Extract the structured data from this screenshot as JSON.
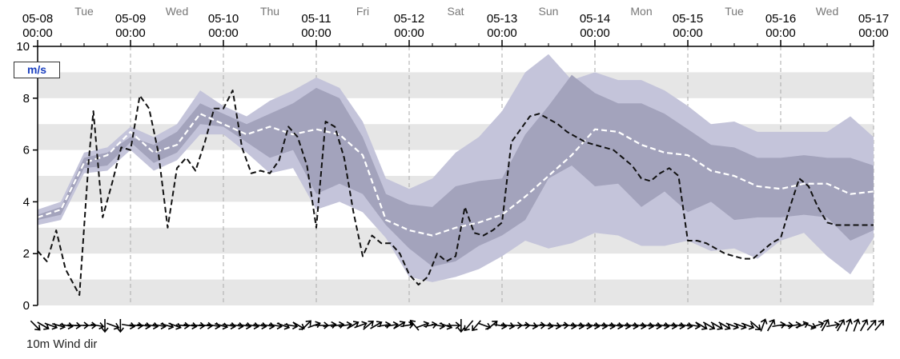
{
  "chart_data": {
    "type": "line",
    "unit": "m/s",
    "ylim": [
      0,
      10
    ],
    "yticks": [
      0,
      2,
      4,
      6,
      8,
      10
    ],
    "xlim": [
      0,
      9
    ],
    "xticks": [
      {
        "x": 0,
        "date": "05-08",
        "time": "00:00"
      },
      {
        "x": 1,
        "date": "05-09",
        "time": "00:00"
      },
      {
        "x": 2,
        "date": "05-10",
        "time": "00:00"
      },
      {
        "x": 3,
        "date": "05-11",
        "time": "00:00"
      },
      {
        "x": 4,
        "date": "05-12",
        "time": "00:00"
      },
      {
        "x": 5,
        "date": "05-13",
        "time": "00:00"
      },
      {
        "x": 6,
        "date": "05-14",
        "time": "00:00"
      },
      {
        "x": 7,
        "date": "05-15",
        "time": "00:00"
      },
      {
        "x": 8,
        "date": "05-16",
        "time": "00:00"
      },
      {
        "x": 9,
        "date": "05-17",
        "time": "00:00"
      }
    ],
    "day_labels": [
      {
        "x": 0.5,
        "label": "Tue"
      },
      {
        "x": 1.5,
        "label": "Wed"
      },
      {
        "x": 2.5,
        "label": "Thu"
      },
      {
        "x": 3.5,
        "label": "Fri"
      },
      {
        "x": 4.5,
        "label": "Sat"
      },
      {
        "x": 5.5,
        "label": "Sun"
      },
      {
        "x": 6.5,
        "label": "Mon"
      },
      {
        "x": 7.5,
        "label": "Tue"
      },
      {
        "x": 8.5,
        "label": "Wed"
      }
    ],
    "band_x": [
      0,
      0.25,
      0.5,
      0.75,
      1,
      1.25,
      1.5,
      1.75,
      2,
      2.25,
      2.5,
      2.75,
      3,
      3.25,
      3.5,
      3.75,
      4,
      4.25,
      4.5,
      4.75,
      5,
      5.25,
      5.5,
      5.75,
      6,
      6.25,
      6.5,
      6.75,
      7,
      7.25,
      7.5,
      7.75,
      8,
      8.25,
      8.5,
      8.75,
      9
    ],
    "outer_band_upper": [
      3.7,
      4.0,
      5.9,
      6.1,
      6.9,
      6.5,
      7.0,
      8.3,
      7.7,
      7.3,
      7.9,
      8.3,
      8.8,
      8.4,
      7.1,
      4.9,
      4.5,
      4.9,
      5.9,
      6.5,
      7.5,
      9.0,
      9.7,
      8.7,
      9.0,
      8.7,
      8.7,
      8.3,
      7.7,
      7.0,
      7.1,
      6.7,
      6.7,
      6.7,
      6.7,
      7.3,
      6.5
    ],
    "outer_band_lower": [
      3.1,
      3.3,
      5.1,
      5.2,
      6.0,
      5.2,
      5.6,
      6.6,
      6.6,
      5.9,
      5.1,
      5.3,
      3.7,
      4.0,
      3.6,
      2.6,
      1.1,
      0.9,
      1.1,
      1.4,
      1.9,
      2.5,
      2.2,
      2.4,
      2.8,
      2.7,
      2.3,
      2.3,
      2.5,
      2.1,
      2.2,
      1.8,
      2.5,
      2.8,
      1.9,
      1.2,
      2.6
    ],
    "inner_band_upper": [
      3.5,
      3.8,
      5.7,
      5.9,
      6.5,
      6.2,
      6.7,
      7.8,
      7.4,
      7.0,
      7.4,
      7.8,
      8.4,
      8.0,
      6.5,
      4.3,
      3.9,
      3.8,
      4.6,
      4.8,
      4.9,
      6.6,
      7.7,
      8.9,
      8.2,
      7.8,
      7.8,
      7.4,
      6.8,
      6.2,
      6.1,
      5.7,
      5.7,
      5.8,
      5.7,
      5.7,
      5.4
    ],
    "inner_band_lower": [
      3.3,
      3.5,
      5.3,
      5.4,
      6.3,
      5.5,
      5.9,
      7.0,
      6.9,
      6.3,
      5.7,
      6.0,
      4.3,
      4.7,
      4.3,
      3.1,
      2.2,
      1.5,
      1.7,
      2.3,
      2.7,
      3.3,
      4.9,
      5.4,
      4.6,
      4.7,
      3.8,
      4.4,
      3.6,
      4.0,
      3.3,
      3.4,
      3.4,
      3.5,
      3.4,
      2.5,
      2.9
    ],
    "series": [
      {
        "values_x": [
          0,
          0.25,
          0.5,
          0.75,
          1,
          1.25,
          1.5,
          1.75,
          2,
          2.25,
          2.5,
          2.75,
          3,
          3.25,
          3.5,
          3.75,
          4,
          4.25,
          4.5,
          4.75,
          5,
          5.25,
          5.5,
          5.75,
          6,
          6.25,
          6.5,
          6.75,
          7,
          7.25,
          7.5,
          7.75,
          8,
          8.25,
          8.5,
          8.75,
          9
        ],
        "values": [
          3.4,
          3.7,
          5.5,
          5.8,
          6.7,
          5.9,
          6.2,
          7.4,
          7.0,
          6.6,
          6.9,
          6.6,
          6.8,
          6.6,
          5.8,
          3.3,
          2.9,
          2.7,
          3.0,
          3.2,
          3.5,
          4.2,
          5.0,
          5.8,
          6.8,
          6.7,
          6.2,
          5.9,
          5.8,
          5.2,
          5.0,
          4.6,
          4.5,
          4.7,
          4.7,
          4.3,
          4.4
        ],
        "style": "white-dashed"
      },
      {
        "values_x": [
          0,
          0.1,
          0.2,
          0.3,
          0.45,
          0.55,
          0.6,
          0.7,
          0.8,
          0.9,
          1.0,
          1.1,
          1.2,
          1.3,
          1.4,
          1.5,
          1.6,
          1.7,
          1.8,
          1.9,
          2.0,
          2.1,
          2.2,
          2.3,
          2.4,
          2.5,
          2.6,
          2.7,
          2.8,
          2.9,
          3.0,
          3.1,
          3.2,
          3.3,
          3.4,
          3.5,
          3.6,
          3.7,
          3.8,
          3.9,
          4.0,
          4.1,
          4.2,
          4.3,
          4.4,
          4.5,
          4.6,
          4.7,
          4.8,
          4.9,
          5.0,
          5.1,
          5.2,
          5.3,
          5.4,
          5.5,
          5.6,
          5.7,
          5.8,
          5.9,
          6.0,
          6.1,
          6.2,
          6.3,
          6.4,
          6.5,
          6.6,
          6.7,
          6.8,
          6.9,
          7.0,
          7.1,
          7.2,
          7.3,
          7.4,
          7.5,
          7.6,
          7.7,
          7.8,
          7.9,
          8.0,
          8.1,
          8.2,
          8.3,
          8.4,
          8.5,
          8.6,
          8.7,
          8.8,
          8.9,
          9.0
        ],
        "values": [
          2.1,
          1.7,
          2.9,
          1.4,
          0.4,
          5.6,
          7.5,
          3.4,
          4.7,
          6.1,
          6.0,
          8.1,
          7.6,
          5.9,
          3.0,
          5.3,
          5.7,
          5.2,
          6.3,
          7.6,
          7.6,
          8.3,
          6.1,
          5.1,
          5.2,
          5.1,
          5.6,
          6.9,
          6.5,
          5.4,
          3.0,
          7.1,
          6.9,
          5.7,
          3.6,
          1.9,
          2.7,
          2.4,
          2.4,
          2.0,
          1.2,
          0.8,
          1.1,
          2.0,
          1.7,
          1.9,
          3.8,
          2.8,
          2.7,
          2.9,
          3.2,
          6.3,
          6.8,
          7.3,
          7.4,
          7.2,
          7.0,
          6.7,
          6.5,
          6.3,
          6.2,
          6.1,
          6.0,
          5.7,
          5.4,
          4.9,
          4.8,
          5.1,
          5.3,
          5.0,
          2.5,
          2.5,
          2.4,
          2.2,
          2.0,
          1.9,
          1.8,
          1.8,
          2.1,
          2.4,
          2.6,
          3.8,
          4.9,
          4.6,
          3.8,
          3.2,
          3.1,
          3.1,
          3.1,
          3.1,
          3.1
        ],
        "style": "black-dashed"
      }
    ],
    "wind_dir_label": "10m Wind dir",
    "wind_dir_degrees": [
      135,
      120,
      110,
      105,
      100,
      95,
      90,
      90,
      100,
      180,
      110,
      180,
      100,
      95,
      100,
      100,
      100,
      105,
      110,
      95,
      100,
      95,
      95,
      100,
      105,
      100,
      100,
      100,
      100,
      100,
      100,
      100,
      110,
      100,
      120,
      45,
      70,
      90,
      80,
      80,
      80,
      60,
      70,
      50,
      60,
      80,
      80,
      60,
      80,
      320,
      70,
      80,
      100,
      110,
      90,
      180,
      220,
      220,
      110,
      50,
      100,
      100,
      90,
      90,
      100,
      90,
      100,
      100,
      90,
      100,
      100,
      100,
      100,
      100,
      100,
      100,
      100,
      100,
      100,
      100,
      100,
      100,
      100,
      100,
      100,
      100,
      120,
      120,
      120,
      120,
      110,
      110,
      110,
      130,
      20,
      30,
      80,
      90,
      80,
      70,
      110,
      70,
      30,
      80,
      30,
      20,
      20,
      30,
      40,
      40
    ]
  }
}
